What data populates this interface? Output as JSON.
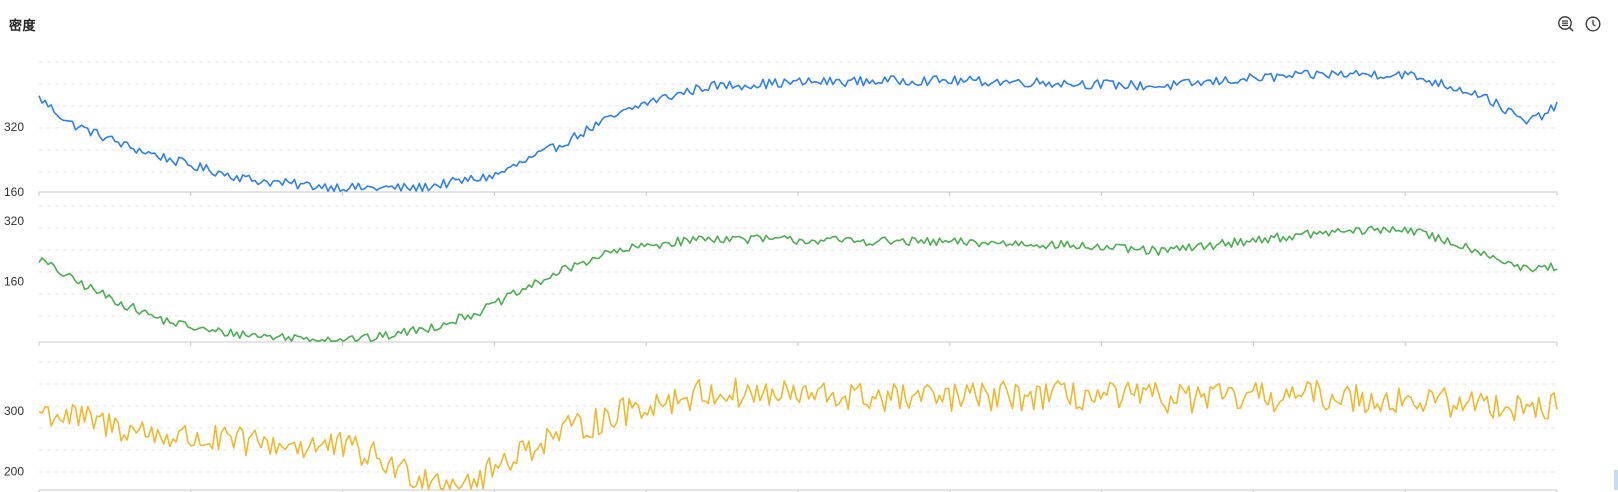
{
  "header": {
    "title": "密度",
    "buttons": [
      {
        "name": "list-zoom-button",
        "icon": "list-zoom-icon"
      },
      {
        "name": "history-button",
        "icon": "clock-icon"
      }
    ]
  },
  "chart_data": [
    {
      "type": "line",
      "series": [
        {
          "color": "#2f7ff0",
          "noise": 12
        }
      ],
      "y_ticks": [
        160,
        320
      ],
      "ylim": [
        160,
        480
      ],
      "grid": true,
      "anchors": [
        [
          0,
          392
        ],
        [
          0.02,
          330
        ],
        [
          0.06,
          270
        ],
        [
          0.1,
          225
        ],
        [
          0.14,
          190
        ],
        [
          0.17,
          178
        ],
        [
          0.21,
          170
        ],
        [
          0.25,
          170
        ],
        [
          0.3,
          200
        ],
        [
          0.34,
          270
        ],
        [
          0.37,
          330
        ],
        [
          0.4,
          380
        ],
        [
          0.44,
          420
        ],
        [
          0.5,
          430
        ],
        [
          0.58,
          435
        ],
        [
          0.66,
          430
        ],
        [
          0.74,
          420
        ],
        [
          0.8,
          440
        ],
        [
          0.85,
          450
        ],
        [
          0.9,
          450
        ],
        [
          0.95,
          400
        ],
        [
          0.98,
          330
        ],
        [
          1.0,
          370
        ]
      ]
    },
    {
      "type": "line",
      "series": [
        {
          "color": "#4caf50",
          "noise": 12
        }
      ],
      "y_ticks": [
        160,
        320
      ],
      "ylim": [
        0,
        360
      ],
      "grid": true,
      "anchors": [
        [
          0,
          220
        ],
        [
          0.02,
          170
        ],
        [
          0.05,
          110
        ],
        [
          0.08,
          60
        ],
        [
          0.11,
          30
        ],
        [
          0.15,
          15
        ],
        [
          0.19,
          8
        ],
        [
          0.22,
          10
        ],
        [
          0.26,
          40
        ],
        [
          0.29,
          80
        ],
        [
          0.31,
          120
        ],
        [
          0.34,
          180
        ],
        [
          0.37,
          230
        ],
        [
          0.4,
          255
        ],
        [
          0.44,
          275
        ],
        [
          0.5,
          270
        ],
        [
          0.58,
          265
        ],
        [
          0.66,
          260
        ],
        [
          0.74,
          240
        ],
        [
          0.8,
          270
        ],
        [
          0.85,
          290
        ],
        [
          0.9,
          300
        ],
        [
          0.95,
          240
        ],
        [
          0.98,
          190
        ],
        [
          1.0,
          200
        ]
      ]
    },
    {
      "type": "line",
      "series": [
        {
          "color": "#f0b82e",
          "noise": 25
        }
      ],
      "y_ticks": [
        200,
        300
      ],
      "ylim": [
        170,
        380
      ],
      "grid": true,
      "anchors": [
        [
          0,
          300
        ],
        [
          0.04,
          280
        ],
        [
          0.08,
          260
        ],
        [
          0.12,
          250
        ],
        [
          0.16,
          245
        ],
        [
          0.2,
          240
        ],
        [
          0.22,
          225
        ],
        [
          0.24,
          200
        ],
        [
          0.27,
          185
        ],
        [
          0.29,
          185
        ],
        [
          0.31,
          225
        ],
        [
          0.34,
          260
        ],
        [
          0.37,
          285
        ],
        [
          0.4,
          310
        ],
        [
          0.44,
          330
        ],
        [
          0.5,
          325
        ],
        [
          0.58,
          320
        ],
        [
          0.66,
          325
        ],
        [
          0.72,
          322
        ],
        [
          0.78,
          320
        ],
        [
          0.84,
          325
        ],
        [
          0.88,
          320
        ],
        [
          0.92,
          315
        ],
        [
          0.96,
          310
        ],
        [
          1.0,
          305
        ]
      ]
    }
  ]
}
